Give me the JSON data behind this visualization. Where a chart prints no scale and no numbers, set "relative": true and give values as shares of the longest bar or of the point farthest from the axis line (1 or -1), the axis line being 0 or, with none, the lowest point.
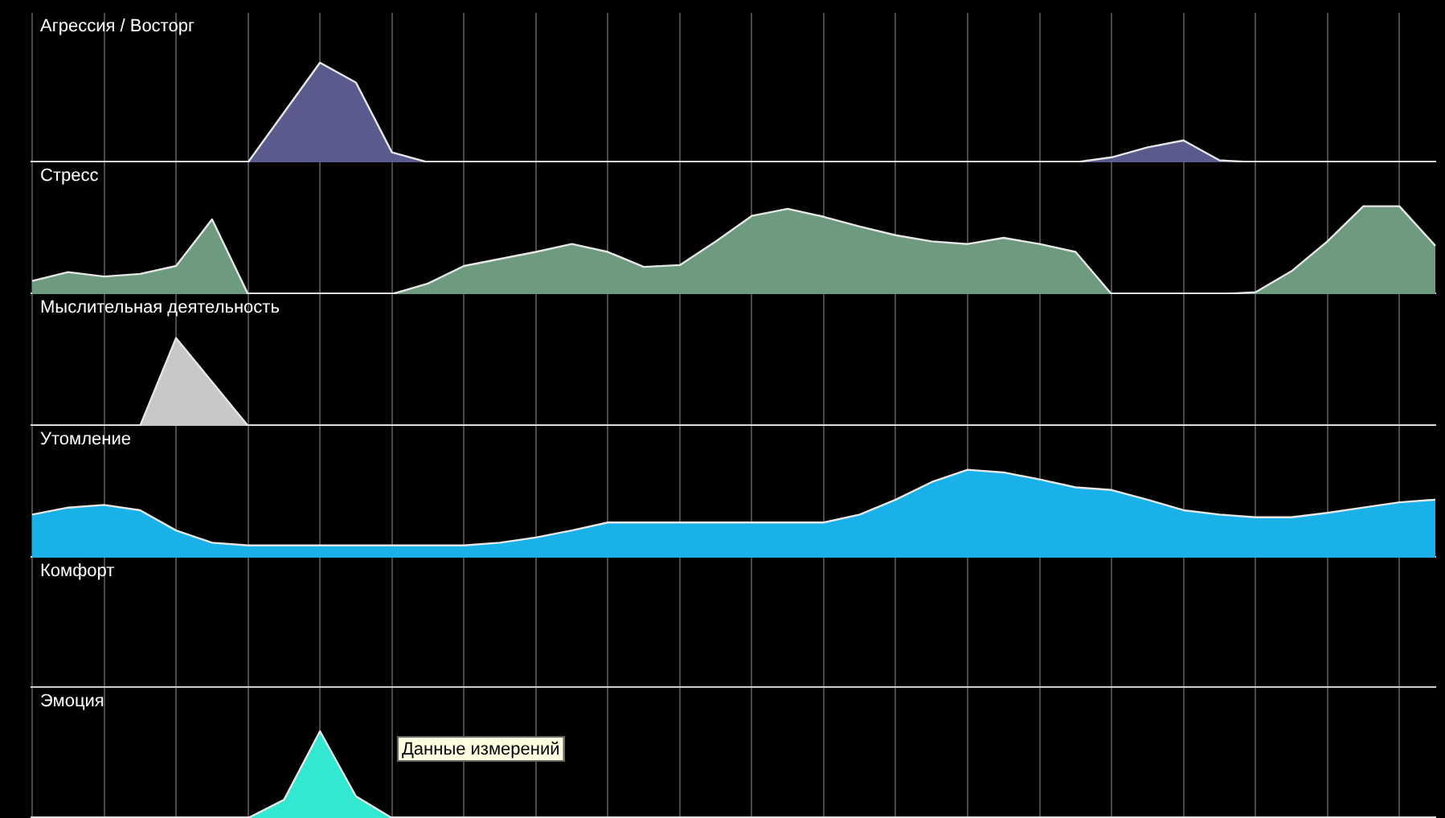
{
  "chart_data": [
    {
      "type": "area",
      "title": "Агрессия / Восторг",
      "relative": true,
      "grid": "x",
      "categories": [
        null,
        null,
        null,
        null,
        null,
        null,
        null,
        null,
        null,
        null,
        null,
        null,
        null,
        null,
        null,
        null,
        null,
        null,
        null,
        null,
        null,
        null,
        null,
        null,
        null,
        null,
        null,
        null,
        null,
        null,
        null,
        null,
        null,
        null,
        null,
        null,
        null,
        null,
        null,
        null
      ],
      "series": [
        {
          "color": "#5b5a8c",
          "values": [
            0,
            0,
            0,
            0,
            0,
            0,
            0,
            0.5,
            1,
            0.8,
            0.1,
            0,
            0,
            0,
            0,
            0,
            0,
            0,
            0,
            0,
            0,
            0,
            0,
            0,
            0,
            0,
            0,
            0,
            0,
            0,
            0.05,
            0.15,
            0.22,
            0.02,
            0,
            0,
            0,
            0,
            0,
            0
          ]
        }
      ]
    },
    {
      "type": "area",
      "title": "Стресс",
      "relative": true,
      "grid": "x",
      "categories": [
        null,
        null,
        null,
        null,
        null,
        null,
        null,
        null,
        null,
        null,
        null,
        null,
        null,
        null,
        null,
        null,
        null,
        null,
        null,
        null,
        null,
        null,
        null,
        null,
        null,
        null,
        null,
        null,
        null,
        null,
        null,
        null,
        null,
        null,
        null,
        null,
        null,
        null,
        null,
        null
      ],
      "series": [
        {
          "color": "#6e9a80",
          "values": [
            0.15,
            0.25,
            0.2,
            0.23,
            0.32,
            0.85,
            0,
            0,
            0,
            0,
            0,
            0.12,
            0.32,
            0.4,
            0.48,
            0.57,
            0.48,
            0.31,
            0.33,
            0.6,
            0.89,
            0.97,
            0.88,
            0.77,
            0.67,
            0.6,
            0.57,
            0.64,
            0.57,
            0.48,
            0,
            0,
            0,
            0,
            0.02,
            0.26,
            0.6,
            1,
            1,
            0.55
          ]
        }
      ]
    },
    {
      "type": "area",
      "title": "Мыслительная деятельность",
      "relative": true,
      "grid": "x",
      "categories": [
        null,
        null,
        null,
        null,
        null,
        null,
        null,
        null,
        null,
        null,
        null,
        null,
        null,
        null,
        null,
        null,
        null,
        null,
        null,
        null,
        null,
        null,
        null,
        null,
        null,
        null,
        null,
        null,
        null,
        null,
        null,
        null,
        null,
        null,
        null,
        null,
        null,
        null,
        null,
        null
      ],
      "series": [
        {
          "color": "#c8c8c8",
          "values": [
            0,
            0,
            0,
            0,
            1,
            0.5,
            0,
            0,
            0,
            0,
            0,
            0,
            0,
            0,
            0,
            0,
            0,
            0,
            0,
            0,
            0,
            0,
            0,
            0,
            0,
            0,
            0,
            0,
            0,
            0,
            0,
            0,
            0,
            0,
            0,
            0,
            0,
            0,
            0,
            0
          ]
        }
      ]
    },
    {
      "type": "area",
      "title": "Утомление",
      "relative": true,
      "grid": "x",
      "categories": [
        null,
        null,
        null,
        null,
        null,
        null,
        null,
        null,
        null,
        null,
        null,
        null,
        null,
        null,
        null,
        null,
        null,
        null,
        null,
        null,
        null,
        null,
        null,
        null,
        null,
        null,
        null,
        null,
        null,
        null,
        null,
        null,
        null,
        null,
        null,
        null,
        null,
        null,
        null,
        null
      ],
      "series": [
        {
          "color": "#1ab0e8",
          "values": [
            0.49,
            0.57,
            0.6,
            0.54,
            0.31,
            0.17,
            0.14,
            0.14,
            0.14,
            0.14,
            0.14,
            0.14,
            0.14,
            0.17,
            0.23,
            0.31,
            0.4,
            0.4,
            0.4,
            0.4,
            0.4,
            0.4,
            0.4,
            0.49,
            0.66,
            0.86,
            1,
            0.97,
            0.89,
            0.8,
            0.77,
            0.66,
            0.54,
            0.49,
            0.46,
            0.46,
            0.51,
            0.57,
            0.63,
            0.66
          ]
        }
      ]
    },
    {
      "type": "other",
      "title": "Комфорт",
      "categories": [
        null,
        null,
        null,
        null,
        null,
        null,
        null,
        null,
        null,
        null,
        null,
        null,
        null,
        null,
        null,
        null,
        null,
        null,
        null,
        null,
        null,
        null,
        null,
        null,
        null,
        null,
        null,
        null,
        null,
        null,
        null,
        null,
        null,
        null,
        null,
        null,
        null,
        null,
        null,
        null
      ]
    },
    {
      "type": "area",
      "title": "Эмоция",
      "relative": true,
      "grid": "x",
      "annotations": [
        "Данные измерений"
      ],
      "categories": [
        null,
        null,
        null,
        null,
        null,
        null,
        null,
        null,
        null,
        null,
        null,
        null,
        null,
        null,
        null,
        null,
        null,
        null,
        null,
        null,
        null,
        null,
        null,
        null,
        null,
        null,
        null,
        null,
        null,
        null,
        null,
        null,
        null,
        null,
        null,
        null,
        null,
        null,
        null,
        null
      ],
      "series": [
        {
          "color": "#33e8d0",
          "values": [
            0,
            0,
            0,
            0,
            0,
            0,
            0,
            0.21,
            1,
            0.25,
            0,
            0,
            0,
            0,
            0,
            0,
            0,
            0,
            0,
            0,
            0,
            0,
            0,
            0,
            0,
            0,
            0,
            0,
            0,
            0,
            0,
            0,
            0,
            0,
            0,
            0,
            0,
            0,
            0,
            0
          ]
        }
      ]
    }
  ]
}
